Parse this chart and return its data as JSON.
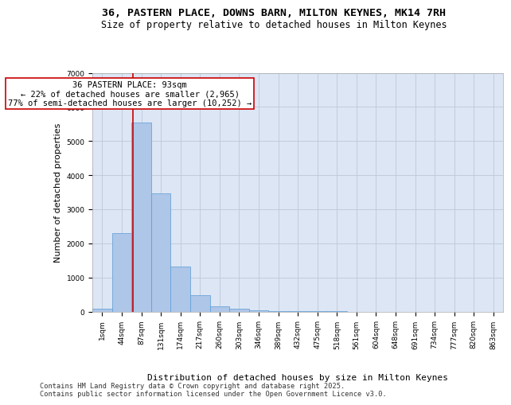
{
  "title_line1": "36, PASTERN PLACE, DOWNS BARN, MILTON KEYNES, MK14 7RH",
  "title_line2": "Size of property relative to detached houses in Milton Keynes",
  "xlabel": "Distribution of detached houses by size in Milton Keynes",
  "ylabel": "Number of detached properties",
  "bar_color": "#aec6e8",
  "bar_edge_color": "#5b9bd5",
  "grid_color": "#c0c8d8",
  "background_color": "#dce6f5",
  "annotation_box_color": "#cc0000",
  "red_line_color": "#cc0000",
  "bin_labels": [
    "1sqm",
    "44sqm",
    "87sqm",
    "131sqm",
    "174sqm",
    "217sqm",
    "260sqm",
    "303sqm",
    "346sqm",
    "389sqm",
    "432sqm",
    "475sqm",
    "518sqm",
    "561sqm",
    "604sqm",
    "648sqm",
    "691sqm",
    "734sqm",
    "777sqm",
    "820sqm",
    "863sqm"
  ],
  "bin_values": [
    80,
    2300,
    5550,
    3470,
    1320,
    470,
    155,
    85,
    45,
    15,
    5,
    2,
    1,
    0,
    0,
    0,
    0,
    0,
    0,
    0,
    0
  ],
  "red_line_x": 1.56,
  "ylim": [
    0,
    7000
  ],
  "annotation_line1": "36 PASTERN PLACE: 93sqm",
  "annotation_line2": "← 22% of detached houses are smaller (2,965)",
  "annotation_line3": "77% of semi-detached houses are larger (10,252) →",
  "footer_line1": "Contains HM Land Registry data © Crown copyright and database right 2025.",
  "footer_line2": "Contains public sector information licensed under the Open Government Licence v3.0.",
  "title_fontsize": 9.5,
  "subtitle_fontsize": 8.5,
  "axis_label_fontsize": 8,
  "tick_fontsize": 6.5,
  "annotation_fontsize": 7.5,
  "footer_fontsize": 6.2
}
